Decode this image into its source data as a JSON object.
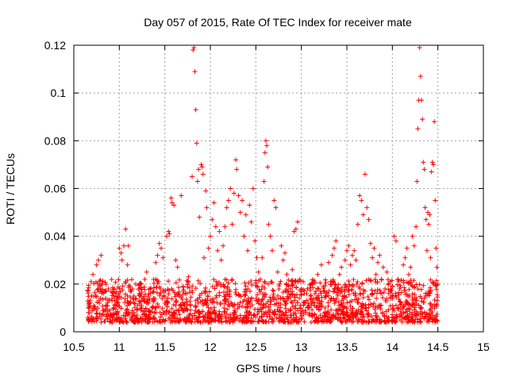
{
  "chart_data": {
    "type": "scatter",
    "title": "Day 057 of 2015, Rate Of TEC Index for receiver mate",
    "xlabel": "GPS time / hours",
    "ylabel": "ROTI / TECUs",
    "xlim": [
      10.5,
      15
    ],
    "ylim": [
      0,
      0.12
    ],
    "x_ticks": [
      10.5,
      11,
      11.5,
      12,
      12.5,
      13,
      13.5,
      14,
      14.5,
      15
    ],
    "x_tick_labels": [
      "10.5",
      "11",
      "11.5",
      "12",
      "12.5",
      "13",
      "13.5",
      "14",
      "14.5",
      "15"
    ],
    "y_ticks": [
      0,
      0.02,
      0.04,
      0.06,
      0.08,
      0.1,
      0.12
    ],
    "y_tick_labels": [
      "0",
      "0.02",
      "0.04",
      "0.06",
      "0.08",
      "0.1",
      "0.12"
    ],
    "grid": true,
    "marker": "+",
    "series": [
      {
        "name": "ROTI",
        "color": "#ff0000",
        "points": [
          [
            10.66,
            0.008
          ],
          [
            10.68,
            0.012
          ],
          [
            10.69,
            0.021
          ],
          [
            10.71,
            0.024
          ],
          [
            10.72,
            0.01
          ],
          [
            10.74,
            0.015
          ],
          [
            10.75,
            0.028
          ],
          [
            10.77,
            0.03
          ],
          [
            10.78,
            0.012
          ],
          [
            10.8,
            0.032
          ],
          [
            10.81,
            0.02
          ],
          [
            10.83,
            0.009
          ],
          [
            10.85,
            0.014
          ],
          [
            10.86,
            0.011
          ],
          [
            10.88,
            0.018
          ],
          [
            10.9,
            0.007
          ],
          [
            10.92,
            0.013
          ],
          [
            10.94,
            0.01
          ],
          [
            10.96,
            0.016
          ],
          [
            10.98,
            0.012
          ],
          [
            11.0,
            0.035
          ],
          [
            11.02,
            0.033
          ],
          [
            11.03,
            0.03
          ],
          [
            11.05,
            0.036
          ],
          [
            11.07,
            0.043
          ],
          [
            11.09,
            0.028
          ],
          [
            11.1,
            0.036
          ],
          [
            11.12,
            0.012
          ],
          [
            11.14,
            0.008
          ],
          [
            11.16,
            0.015
          ],
          [
            11.18,
            0.02
          ],
          [
            11.2,
            0.011
          ],
          [
            11.22,
            0.016
          ],
          [
            11.24,
            0.009
          ],
          [
            11.26,
            0.014
          ],
          [
            11.28,
            0.022
          ],
          [
            11.3,
            0.025
          ],
          [
            11.32,
            0.012
          ],
          [
            11.34,
            0.018
          ],
          [
            11.36,
            0.01
          ],
          [
            11.38,
            0.013
          ],
          [
            11.4,
            0.029
          ],
          [
            11.42,
            0.032
          ],
          [
            11.44,
            0.037
          ],
          [
            11.46,
            0.035
          ],
          [
            11.48,
            0.031
          ],
          [
            11.5,
            0.012
          ],
          [
            11.52,
            0.04
          ],
          [
            11.54,
            0.042
          ],
          [
            11.55,
            0.041
          ],
          [
            11.57,
            0.056
          ],
          [
            11.58,
            0.054
          ],
          [
            11.6,
            0.053
          ],
          [
            11.62,
            0.03
          ],
          [
            11.64,
            0.027
          ],
          [
            11.66,
            0.015
          ],
          [
            11.68,
            0.057
          ],
          [
            11.7,
            0.019
          ],
          [
            11.72,
            0.012
          ],
          [
            11.74,
            0.016
          ],
          [
            11.76,
            0.023
          ],
          [
            11.78,
            0.011
          ],
          [
            11.8,
            0.065
          ],
          [
            11.81,
            0.118
          ],
          [
            11.82,
            0.119
          ],
          [
            11.83,
            0.109
          ],
          [
            11.84,
            0.093
          ],
          [
            11.85,
            0.079
          ],
          [
            11.86,
            0.063
          ],
          [
            11.87,
            0.068
          ],
          [
            11.88,
            0.048
          ],
          [
            11.9,
            0.07
          ],
          [
            11.91,
            0.069
          ],
          [
            11.92,
            0.066
          ],
          [
            11.93,
            0.031
          ],
          [
            11.95,
            0.059
          ],
          [
            11.96,
            0.052
          ],
          [
            11.98,
            0.035
          ],
          [
            12.0,
            0.04
          ],
          [
            12.02,
            0.047
          ],
          [
            12.04,
            0.054
          ],
          [
            12.06,
            0.044
          ],
          [
            12.08,
            0.034
          ],
          [
            12.1,
            0.042
          ],
          [
            12.12,
            0.03
          ],
          [
            12.14,
            0.036
          ],
          [
            12.16,
            0.044
          ],
          [
            12.18,
            0.052
          ],
          [
            12.2,
            0.055
          ],
          [
            12.22,
            0.06
          ],
          [
            12.24,
            0.045
          ],
          [
            12.26,
            0.058
          ],
          [
            12.28,
            0.072
          ],
          [
            12.29,
            0.068
          ],
          [
            12.31,
            0.057
          ],
          [
            12.33,
            0.05
          ],
          [
            12.35,
            0.055
          ],
          [
            12.37,
            0.04
          ],
          [
            12.39,
            0.049
          ],
          [
            12.41,
            0.034
          ],
          [
            12.43,
            0.053
          ],
          [
            12.45,
            0.046
          ],
          [
            12.47,
            0.06
          ],
          [
            12.49,
            0.038
          ],
          [
            12.51,
            0.031
          ],
          [
            12.53,
            0.025
          ],
          [
            12.55,
            0.022
          ],
          [
            12.57,
            0.031
          ],
          [
            12.59,
            0.063
          ],
          [
            12.6,
            0.075
          ],
          [
            12.61,
            0.08
          ],
          [
            12.62,
            0.078
          ],
          [
            12.63,
            0.069
          ],
          [
            12.64,
            0.045
          ],
          [
            12.66,
            0.04
          ],
          [
            12.68,
            0.034
          ],
          [
            12.7,
            0.055
          ],
          [
            12.72,
            0.052
          ],
          [
            12.74,
            0.025
          ],
          [
            12.76,
            0.02
          ],
          [
            12.78,
            0.036
          ],
          [
            12.8,
            0.03
          ],
          [
            12.82,
            0.033
          ],
          [
            12.84,
            0.024
          ],
          [
            12.86,
            0.014
          ],
          [
            12.88,
            0.018
          ],
          [
            12.9,
            0.026
          ],
          [
            12.92,
            0.042
          ],
          [
            12.94,
            0.043
          ],
          [
            12.96,
            0.046
          ],
          [
            12.98,
            0.022
          ],
          [
            13.0,
            0.018
          ],
          [
            13.02,
            0.021
          ],
          [
            13.04,
            0.012
          ],
          [
            13.06,
            0.016
          ],
          [
            13.08,
            0.01
          ],
          [
            13.1,
            0.015
          ],
          [
            13.12,
            0.02
          ],
          [
            13.14,
            0.011
          ],
          [
            13.16,
            0.017
          ],
          [
            13.18,
            0.024
          ],
          [
            13.2,
            0.013
          ],
          [
            13.22,
            0.028
          ],
          [
            13.24,
            0.019
          ],
          [
            13.26,
            0.01
          ],
          [
            13.28,
            0.016
          ],
          [
            13.3,
            0.029
          ],
          [
            13.32,
            0.021
          ],
          [
            13.34,
            0.032
          ],
          [
            13.36,
            0.035
          ],
          [
            13.38,
            0.038
          ],
          [
            13.4,
            0.018
          ],
          [
            13.42,
            0.024
          ],
          [
            13.44,
            0.027
          ],
          [
            13.46,
            0.012
          ],
          [
            13.48,
            0.03
          ],
          [
            13.5,
            0.034
          ],
          [
            13.52,
            0.036
          ],
          [
            13.54,
            0.028
          ],
          [
            13.56,
            0.032
          ],
          [
            13.58,
            0.034
          ],
          [
            13.6,
            0.03
          ],
          [
            13.62,
            0.045
          ],
          [
            13.64,
            0.057
          ],
          [
            13.66,
            0.055
          ],
          [
            13.68,
            0.049
          ],
          [
            13.7,
            0.066
          ],
          [
            13.72,
            0.052
          ],
          [
            13.74,
            0.047
          ],
          [
            13.76,
            0.037
          ],
          [
            13.78,
            0.031
          ],
          [
            13.8,
            0.035
          ],
          [
            13.82,
            0.024
          ],
          [
            13.84,
            0.029
          ],
          [
            13.86,
            0.032
          ],
          [
            13.88,
            0.022
          ],
          [
            13.9,
            0.027
          ],
          [
            13.92,
            0.018
          ],
          [
            13.94,
            0.025
          ],
          [
            13.96,
            0.016
          ],
          [
            13.98,
            0.014
          ],
          [
            14.0,
            0.019
          ],
          [
            14.02,
            0.04
          ],
          [
            14.04,
            0.038
          ],
          [
            14.06,
            0.022
          ],
          [
            14.08,
            0.018
          ],
          [
            14.1,
            0.012
          ],
          [
            14.12,
            0.028
          ],
          [
            14.14,
            0.031
          ],
          [
            14.16,
            0.035
          ],
          [
            14.18,
            0.024
          ],
          [
            14.2,
            0.027
          ],
          [
            14.22,
            0.04
          ],
          [
            14.24,
            0.036
          ],
          [
            14.26,
            0.044
          ],
          [
            14.27,
            0.063
          ],
          [
            14.28,
            0.085
          ],
          [
            14.29,
            0.097
          ],
          [
            14.3,
            0.119
          ],
          [
            14.31,
            0.107
          ],
          [
            14.32,
            0.097
          ],
          [
            14.33,
            0.089
          ],
          [
            14.34,
            0.071
          ],
          [
            14.35,
            0.068
          ],
          [
            14.36,
            0.052
          ],
          [
            14.37,
            0.047
          ],
          [
            14.38,
            0.034
          ],
          [
            14.39,
            0.05
          ],
          [
            14.4,
            0.045
          ],
          [
            14.41,
            0.049
          ],
          [
            14.42,
            0.031
          ],
          [
            14.43,
            0.067
          ],
          [
            14.44,
            0.071
          ],
          [
            14.45,
            0.07
          ],
          [
            14.46,
            0.088
          ],
          [
            14.47,
            0.055
          ],
          [
            14.48,
            0.035
          ],
          [
            14.49,
            0.027
          ],
          [
            14.5,
            0.02
          ]
        ]
      }
    ],
    "band": {
      "x_start": 10.65,
      "x_end": 14.5,
      "y_low": 0.004,
      "y_high": 0.022
    }
  }
}
